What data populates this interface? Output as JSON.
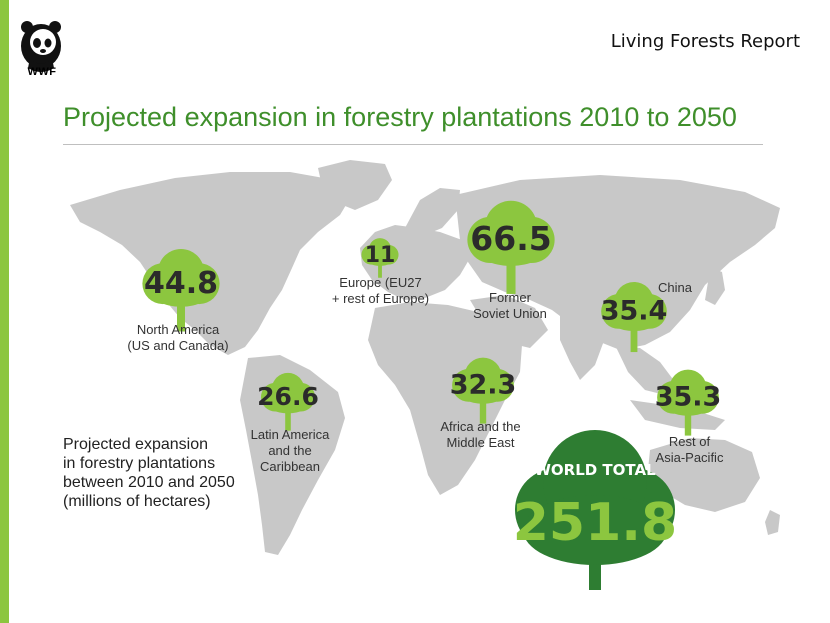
{
  "header": {
    "logo_text": "WWF",
    "report_label": "Living Forests Report"
  },
  "title": "Projected expansion in forestry plantations 2010 to 2050",
  "legend_lines": [
    "Projected expansion",
    "in forestry plantations",
    "between 2010 and 2050",
    "(millions of hectares)"
  ],
  "colors": {
    "accent": "#8cc63f",
    "title_green": "#3f8f2b",
    "tree_light": "#8cc63f",
    "tree_dark": "#2e7d32",
    "map_gray": "#c8c8c8"
  },
  "regions": [
    {
      "id": "north-america",
      "value": "44.8",
      "label_lines": [
        "North America",
        "(US and Canada)"
      ]
    },
    {
      "id": "europe",
      "value": "11",
      "label_lines": [
        "Europe (EU27",
        "+ rest of Europe)"
      ]
    },
    {
      "id": "former-soviet-union",
      "value": "66.5",
      "label_lines": [
        "Former",
        "Soviet Union"
      ]
    },
    {
      "id": "china",
      "value": "35.4",
      "label_lines": [
        "China"
      ]
    },
    {
      "id": "latin-america",
      "value": "26.6",
      "label_lines": [
        "Latin America",
        "and the",
        "Caribbean"
      ]
    },
    {
      "id": "africa-middle-east",
      "value": "32.3",
      "label_lines": [
        "Africa and the",
        "Middle East"
      ]
    },
    {
      "id": "rest-asia-pacific",
      "value": "35.3",
      "label_lines": [
        "Rest of",
        "Asia-Pacific"
      ]
    }
  ],
  "world_total": {
    "label": "WORLD TOTAL",
    "value": "251.8"
  }
}
